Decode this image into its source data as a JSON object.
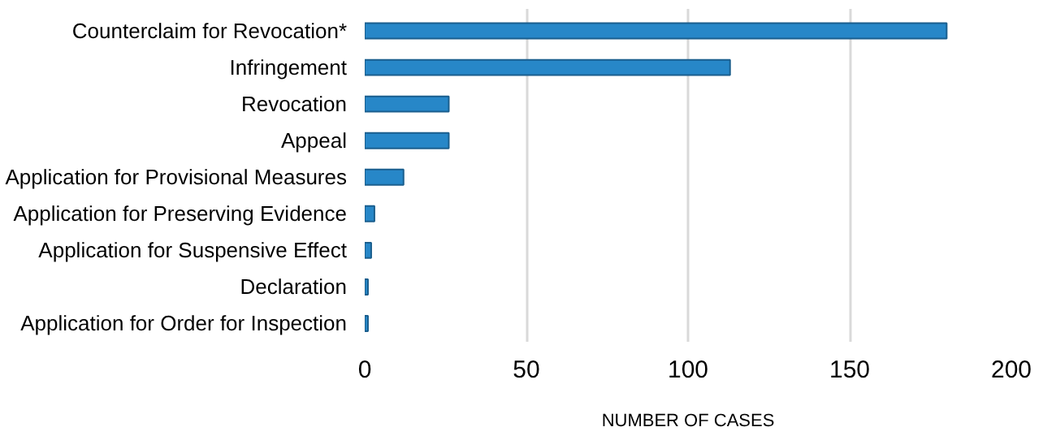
{
  "chart_data": {
    "type": "bar",
    "orientation": "horizontal",
    "xlabel": "NUMBER OF CASES",
    "categories": [
      "Counterclaim for Revocation*",
      "Infringement",
      "Revocation",
      "Appeal",
      "Application for Provisional Measures",
      "Application for Preserving Evidence",
      "Application for Suspensive Effect",
      "Declaration",
      "Application for Order for Inspection"
    ],
    "values": [
      180,
      113,
      26,
      26,
      12,
      3,
      2,
      1,
      1
    ],
    "color": "#2787c8",
    "xlim": [
      0,
      200
    ],
    "xticks": [
      0,
      50,
      100,
      150,
      200
    ],
    "grid": "x"
  }
}
